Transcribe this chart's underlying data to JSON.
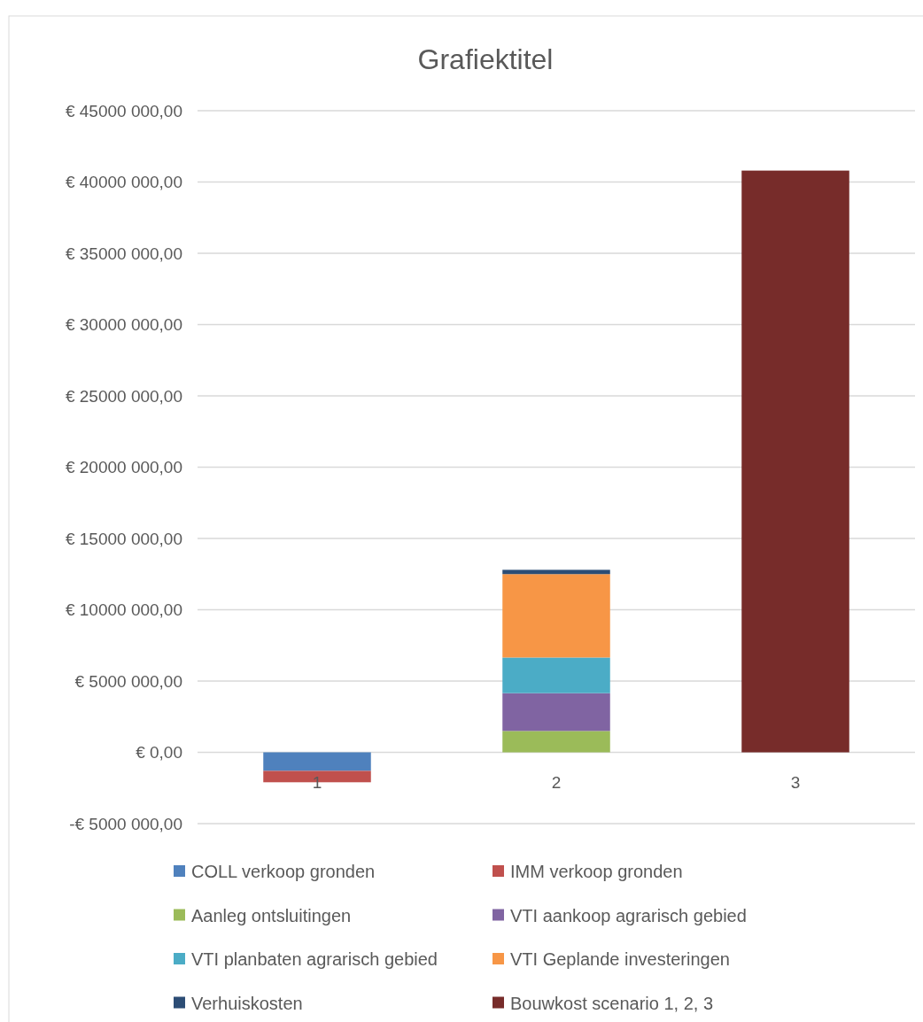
{
  "chart_data": {
    "type": "bar",
    "title": "Grafiektitel",
    "categories": [
      "1",
      "2",
      "3"
    ],
    "stacked": true,
    "grid": "y",
    "legend": "bottom",
    "ylim": [
      -5000000,
      45000000
    ],
    "yticks": [
      {
        "value": -5000000,
        "label": "-€ 5000 000,00"
      },
      {
        "value": 0,
        "label": "€  0,00"
      },
      {
        "value": 5000000,
        "label": "€ 5000 000,00"
      },
      {
        "value": 10000000,
        "label": "€ 10000 000,00"
      },
      {
        "value": 15000000,
        "label": "€ 15000 000,00"
      },
      {
        "value": 20000000,
        "label": "€ 20000 000,00"
      },
      {
        "value": 25000000,
        "label": "€ 25000 000,00"
      },
      {
        "value": 30000000,
        "label": "€ 30000 000,00"
      },
      {
        "value": 35000000,
        "label": "€ 35000 000,00"
      },
      {
        "value": 40000000,
        "label": "€ 40000 000,00"
      },
      {
        "value": 45000000,
        "label": "€ 45000 000,00"
      }
    ],
    "series": [
      {
        "name": "COLL verkoop gronden",
        "color": "#4f81bd",
        "values": [
          -1300000,
          null,
          null
        ]
      },
      {
        "name": "IMM verkoop gronden",
        "color": "#c0504d",
        "values": [
          -800000,
          null,
          null
        ]
      },
      {
        "name": "Aanleg ontsluitingen",
        "color": "#9bbb59",
        "values": [
          null,
          1500000,
          null
        ]
      },
      {
        "name": "VTI aankoop agrarisch gebied",
        "color": "#8064a2",
        "values": [
          null,
          2650000,
          null
        ]
      },
      {
        "name": "VTI planbaten agrarisch gebied",
        "color": "#4bacc6",
        "values": [
          null,
          2500000,
          null
        ]
      },
      {
        "name": "VTI Geplande investeringen",
        "color": "#f79646",
        "values": [
          null,
          5850000,
          null
        ]
      },
      {
        "name": "Verhuiskosten",
        "color": "#2c4d75",
        "values": [
          null,
          300000,
          null
        ]
      },
      {
        "name": "Bouwkost scenario 1, 2, 3",
        "color": "#772c2a",
        "values": [
          null,
          null,
          40800000
        ]
      }
    ]
  }
}
